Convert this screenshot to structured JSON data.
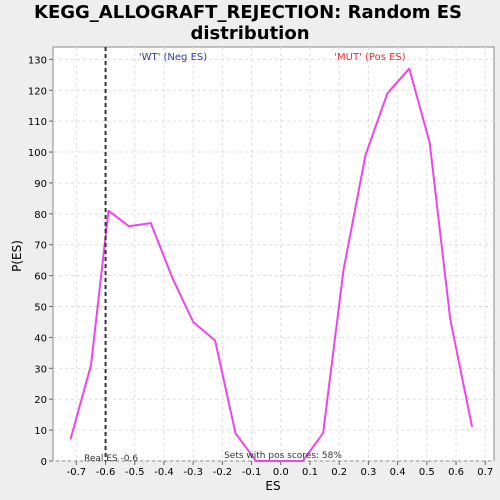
{
  "chart_data": {
    "type": "line",
    "title_lines": [
      "KEGG_ALLOGRAFT_REJECTION: Random ES",
      "distribution"
    ],
    "xlabel": "ES",
    "ylabel": "P(ES)",
    "xlim": [
      -0.78,
      0.73
    ],
    "ylim": [
      0,
      134
    ],
    "xticks": [
      -0.7,
      -0.6,
      -0.5,
      -0.4,
      -0.3,
      -0.2,
      -0.1,
      0.0,
      0.1,
      0.2,
      0.3,
      0.4,
      0.5,
      0.6,
      0.7
    ],
    "xtick_labels": [
      "-0.7",
      "-0.6",
      "-0.5",
      "-0.4",
      "-0.3",
      "-0.2",
      "-0.1",
      "0.0",
      "0.1",
      "0.2",
      "0.3",
      "0.4",
      "0.5",
      "0.6",
      "0.7"
    ],
    "yticks": [
      0,
      10,
      20,
      30,
      40,
      50,
      60,
      70,
      80,
      90,
      100,
      110,
      120,
      130
    ],
    "ytick_labels": [
      "0",
      "10",
      "20",
      "30",
      "40",
      "50",
      "60",
      "70",
      "80",
      "90",
      "100",
      "110",
      "120",
      "130"
    ],
    "grid": true,
    "series": [
      {
        "color": "#ee44ee",
        "x": [
          -0.72,
          -0.65,
          -0.59,
          -0.52,
          -0.445,
          -0.37,
          -0.3,
          -0.225,
          -0.155,
          -0.085,
          0.0,
          0.075,
          0.145,
          0.215,
          0.29,
          0.365,
          0.44,
          0.51,
          0.58,
          0.655
        ],
        "y": [
          7,
          31,
          81,
          76,
          77,
          59,
          45,
          39,
          9,
          0,
          0,
          0,
          9,
          62,
          99,
          119,
          127,
          103,
          46,
          11
        ]
      }
    ],
    "real_es": {
      "x": -0.6,
      "label": "Real ES -0.6"
    },
    "annotations": {
      "neg": {
        "text": "'WT' (Neg ES)",
        "color": "#3333cc"
      },
      "pos": {
        "text": "'MUT' (Pos ES)",
        "color": "#dd3333"
      },
      "footer": "Sets with pos scores: 58%"
    },
    "colors": {
      "background": "#eeeeee",
      "plot_background": "#ffffff",
      "grid": "#dddddd",
      "real_es_line": "#333333"
    }
  }
}
